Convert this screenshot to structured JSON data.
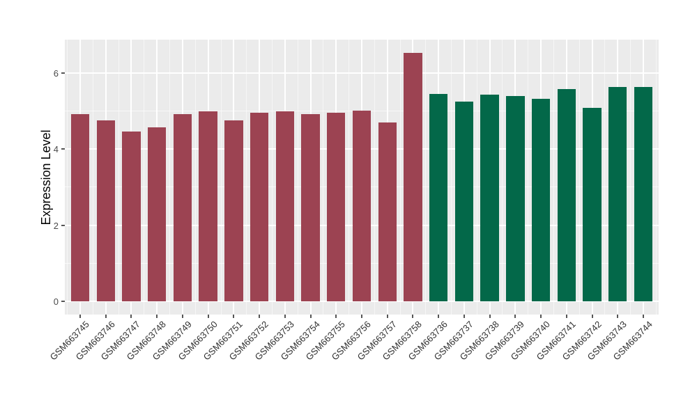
{
  "chart_data": {
    "type": "bar",
    "title": "",
    "xlabel": "",
    "ylabel": "Expression Level",
    "categories": [
      "GSM663745",
      "GSM663746",
      "GSM663747",
      "GSM663748",
      "GSM663749",
      "GSM663750",
      "GSM663751",
      "GSM663752",
      "GSM663753",
      "GSM663754",
      "GSM663755",
      "GSM663756",
      "GSM663757",
      "GSM663758",
      "GSM663736",
      "GSM663737",
      "GSM663738",
      "GSM663739",
      "GSM663740",
      "GSM663741",
      "GSM663742",
      "GSM663743",
      "GSM663744"
    ],
    "values": [
      4.92,
      4.75,
      4.47,
      4.57,
      4.93,
      4.99,
      4.75,
      4.95,
      4.99,
      4.92,
      4.96,
      5.01,
      4.71,
      6.54,
      5.46,
      5.25,
      5.43,
      5.39,
      5.32,
      5.58,
      5.08,
      5.64,
      5.64
    ],
    "groups": [
      "a",
      "a",
      "a",
      "a",
      "a",
      "a",
      "a",
      "a",
      "a",
      "a",
      "a",
      "a",
      "a",
      "a",
      "b",
      "b",
      "b",
      "b",
      "b",
      "b",
      "b",
      "b",
      "b"
    ],
    "group_colors": {
      "a": "#9C4352",
      "b": "#036849"
    },
    "yticks_major": [
      0,
      2,
      4,
      6
    ],
    "yticks_minor": [
      1,
      3,
      5
    ],
    "ylim": [
      -0.35,
      6.88
    ],
    "bar_rel_width": 0.72,
    "grid": "on",
    "legend_position": "none",
    "panel_background": "#EBEBEB",
    "grid_color": "#FFFFFF",
    "axis_text_color": "#4a4a4a",
    "axis_title_color": "#000000"
  }
}
